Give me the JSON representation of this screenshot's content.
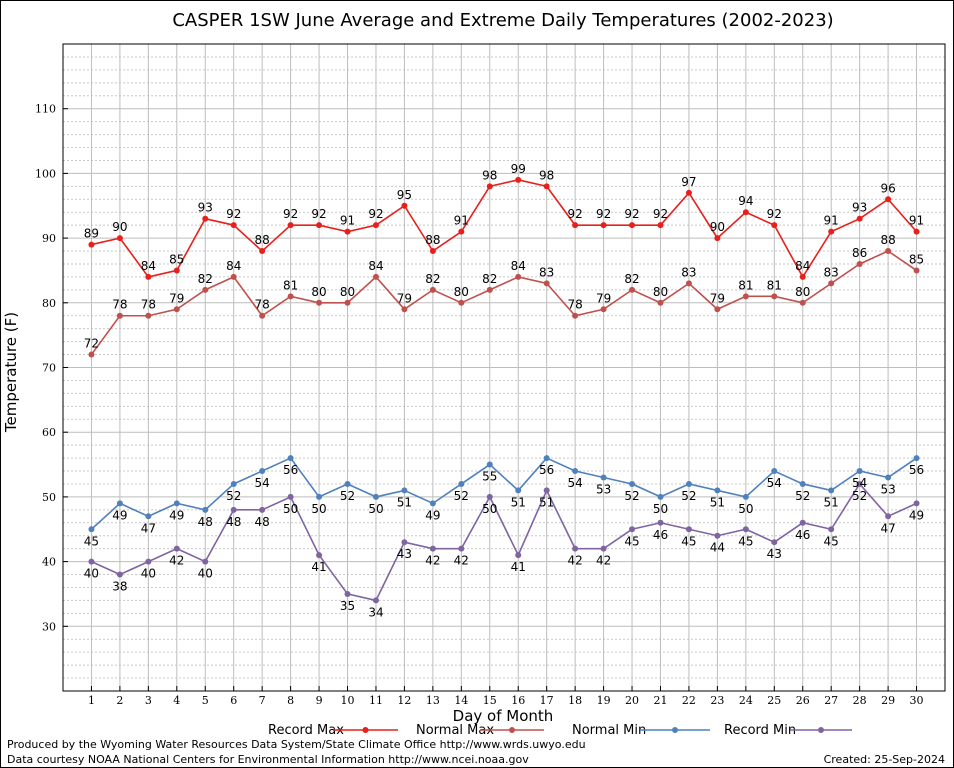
{
  "chart_data": {
    "type": "line",
    "title": "CASPER 1SW June Average and Extreme Daily Temperatures (2002-2023)",
    "xlabel": "Day of Month",
    "ylabel": "Temperature (F)",
    "x": [
      1,
      2,
      3,
      4,
      5,
      6,
      7,
      8,
      9,
      10,
      11,
      12,
      13,
      14,
      15,
      16,
      17,
      18,
      19,
      20,
      21,
      22,
      23,
      24,
      25,
      26,
      27,
      28,
      29,
      30
    ],
    "xlim": [
      0,
      31
    ],
    "ylim": [
      20,
      120
    ],
    "yticks": [
      30,
      40,
      50,
      60,
      70,
      80,
      90,
      100,
      110
    ],
    "grid": true,
    "legend_position": "bottom",
    "series": [
      {
        "name": "Record Max",
        "color": "#e8201c",
        "values": [
          89,
          90,
          84,
          85,
          93,
          92,
          88,
          92,
          92,
          91,
          92,
          95,
          88,
          91,
          98,
          99,
          98,
          92,
          92,
          92,
          92,
          97,
          90,
          94,
          92,
          84,
          91,
          93,
          96,
          91
        ]
      },
      {
        "name": "Normal Max",
        "color": "#c0504d",
        "values": [
          72,
          78,
          78,
          79,
          82,
          84,
          78,
          81,
          80,
          80,
          84,
          79,
          82,
          80,
          82,
          84,
          83,
          78,
          79,
          82,
          80,
          83,
          79,
          81,
          81,
          80,
          83,
          86,
          88,
          85
        ]
      },
      {
        "name": "Normal Min",
        "color": "#4f81bd",
        "values": [
          45,
          49,
          47,
          49,
          48,
          52,
          54,
          56,
          50,
          52,
          50,
          51,
          49,
          52,
          55,
          51,
          56,
          54,
          53,
          52,
          50,
          52,
          51,
          50,
          54,
          52,
          51,
          54,
          53,
          56
        ]
      },
      {
        "name": "Record Min",
        "color": "#8064a2",
        "values": [
          40,
          38,
          40,
          42,
          40,
          48,
          48,
          50,
          41,
          35,
          34,
          43,
          42,
          42,
          50,
          41,
          51,
          42,
          42,
          45,
          46,
          45,
          44,
          45,
          43,
          46,
          45,
          52,
          47,
          49
        ]
      }
    ]
  },
  "footer": {
    "producer": "Produced by the Wyoming Water Resources Data System/State Climate Office http://www.wrds.uwyo.edu",
    "courtesy": "Data courtesy NOAA National Centers for Environmental Information http://www.ncei.noaa.gov",
    "created": "Created:  25-Sep-2024"
  }
}
